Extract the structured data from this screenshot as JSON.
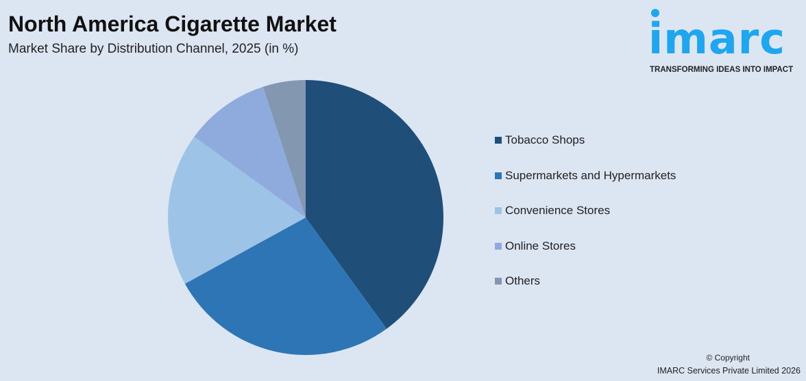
{
  "header": {
    "title": "North America Cigarette Market",
    "subtitle": "Market Share by Distribution Channel, 2025 (in %)"
  },
  "logo": {
    "word": "imarc",
    "tagline": "TRANSFORMING IDEAS INTO IMPACT",
    "color": "#1ea7f0"
  },
  "footer": {
    "copyright": "© Copyright",
    "company": "IMARC Services Private Limited 2026"
  },
  "chart_data": {
    "type": "pie",
    "title": "North America Cigarette Market",
    "subtitle": "Market Share by Distribution Channel, 2025 (in %)",
    "legend_position": "right",
    "start_angle": "12 o'clock, clockwise",
    "categories": [
      "Tobacco Shops",
      "Supermarkets and Hypermarkets",
      "Convenience Stores",
      "Online Stores",
      "Others"
    ],
    "values": [
      40,
      27,
      18,
      10,
      5
    ],
    "colors": [
      "#1f4e79",
      "#2e75b6",
      "#9dc3e6",
      "#8faadc",
      "#8497b0"
    ]
  }
}
